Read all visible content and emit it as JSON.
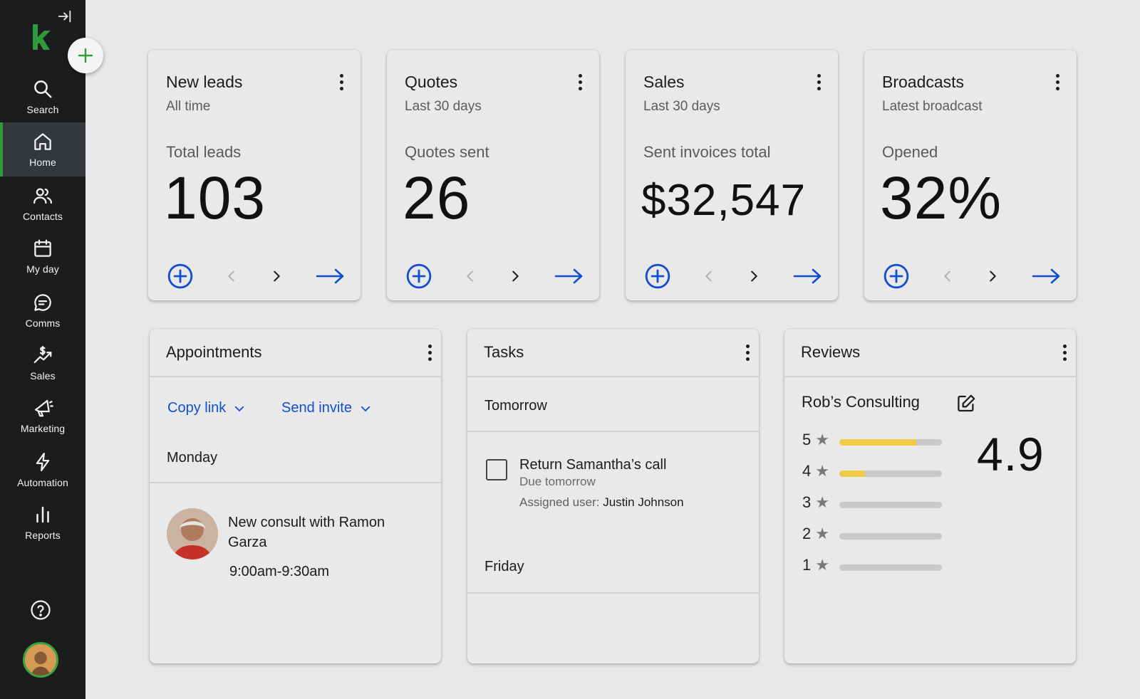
{
  "sidebar": {
    "items": [
      {
        "label": "Search",
        "icon": "search-icon"
      },
      {
        "label": "Home",
        "icon": "home-icon",
        "active": true
      },
      {
        "label": "Contacts",
        "icon": "contacts-icon"
      },
      {
        "label": "My day",
        "icon": "calendar-icon"
      },
      {
        "label": "Comms",
        "icon": "chat-icon"
      },
      {
        "label": "Sales",
        "icon": "sales-icon"
      },
      {
        "label": "Marketing",
        "icon": "megaphone-icon"
      },
      {
        "label": "Automation",
        "icon": "lightning-icon"
      },
      {
        "label": "Reports",
        "icon": "bar-chart-icon"
      }
    ],
    "accent": "#2e9a3c"
  },
  "kpis": [
    {
      "title": "New leads",
      "subtitle": "All time",
      "metric_label": "Total leads",
      "value": "103"
    },
    {
      "title": "Quotes",
      "subtitle": "Last 30 days",
      "metric_label": "Quotes sent",
      "value": "26"
    },
    {
      "title": "Sales",
      "subtitle": "Last 30 days",
      "metric_label": "Sent invoices total",
      "value": "$32,547"
    },
    {
      "title": "Broadcasts",
      "subtitle": "Latest broadcast",
      "metric_label": "Opened",
      "value": "32%"
    }
  ],
  "appointments": {
    "title": "Appointments",
    "copy_link": "Copy link",
    "send_invite": "Send invite",
    "day": "Monday",
    "event_title": "New consult with Ramon Garza",
    "event_time": "9:00am-9:30am"
  },
  "tasks": {
    "title": "Tasks",
    "group1": "Tomorrow",
    "task_title": "Return Samantha’s call",
    "task_due": "Due tomorrow",
    "assigned_label": "Assigned user:",
    "assigned_user": "Justin Johnson",
    "group2": "Friday"
  },
  "reviews": {
    "title": "Reviews",
    "business": "Rob’s Consulting",
    "average": "4.9",
    "ratings": [
      {
        "stars": "5",
        "fill": 0.75
      },
      {
        "stars": "4",
        "fill": 0.25
      },
      {
        "stars": "3",
        "fill": 0
      },
      {
        "stars": "2",
        "fill": 0
      },
      {
        "stars": "1",
        "fill": 0
      }
    ],
    "bar_color": "#f1cc48"
  },
  "colors": {
    "link": "#0f4fd0",
    "background": "#e8e8e8"
  }
}
